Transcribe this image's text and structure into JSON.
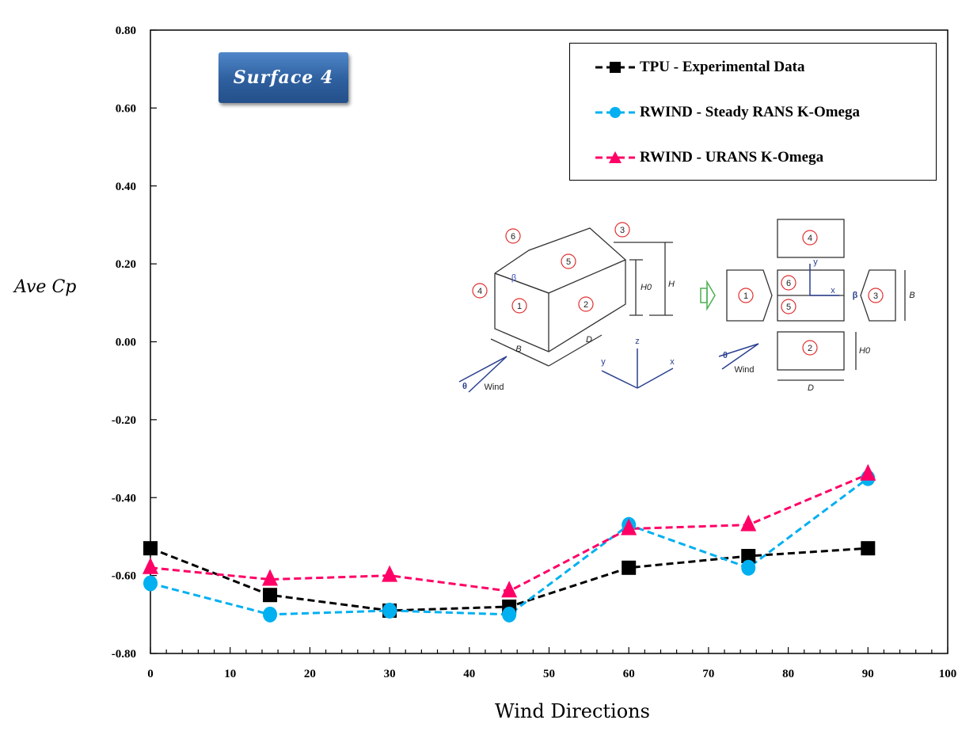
{
  "chart_data": {
    "type": "line",
    "title": "Surface 4",
    "xlabel": "Wind Directions",
    "ylabel": "Ave Cp",
    "xlim": [
      0,
      100
    ],
    "ylim": [
      -0.8,
      0.8
    ],
    "x_ticks": [
      "0",
      "10",
      "20",
      "30",
      "40",
      "50",
      "60",
      "70",
      "80",
      "90",
      "100"
    ],
    "y_ticks": [
      "0.80",
      "0.60",
      "0.40",
      "0.20",
      "0.00",
      "-0.20",
      "-0.40",
      "-0.60",
      "-0.80"
    ],
    "grid": false,
    "legend_position": "top-right",
    "x": [
      0,
      15,
      30,
      45,
      60,
      75,
      90
    ],
    "series": [
      {
        "name": "TPU - Experimental Data",
        "color": "#000000",
        "marker": "square",
        "values": [
          -0.53,
          -0.65,
          -0.69,
          -0.68,
          -0.58,
          -0.55,
          -0.53
        ]
      },
      {
        "name": "RWIND - Steady RANS K-Omega",
        "color": "#00b0f0",
        "marker": "circle",
        "values": [
          -0.62,
          -0.7,
          -0.69,
          -0.7,
          -0.47,
          -0.58,
          -0.35
        ]
      },
      {
        "name": "RWIND - URANS K-Omega",
        "color": "#ff0066",
        "marker": "triangle",
        "values": [
          -0.58,
          -0.61,
          -0.6,
          -0.64,
          -0.48,
          -0.47,
          -0.34
        ]
      }
    ]
  },
  "diagram": {
    "surface_numbers": [
      "1",
      "2",
      "3",
      "4",
      "5",
      "6"
    ],
    "dims": {
      "B": "B",
      "D": "D",
      "H": "H",
      "H0": "H0"
    },
    "axes": {
      "x": "x",
      "y": "y",
      "z": "z"
    },
    "wind": "Wind",
    "theta": "θ",
    "beta": "β"
  }
}
